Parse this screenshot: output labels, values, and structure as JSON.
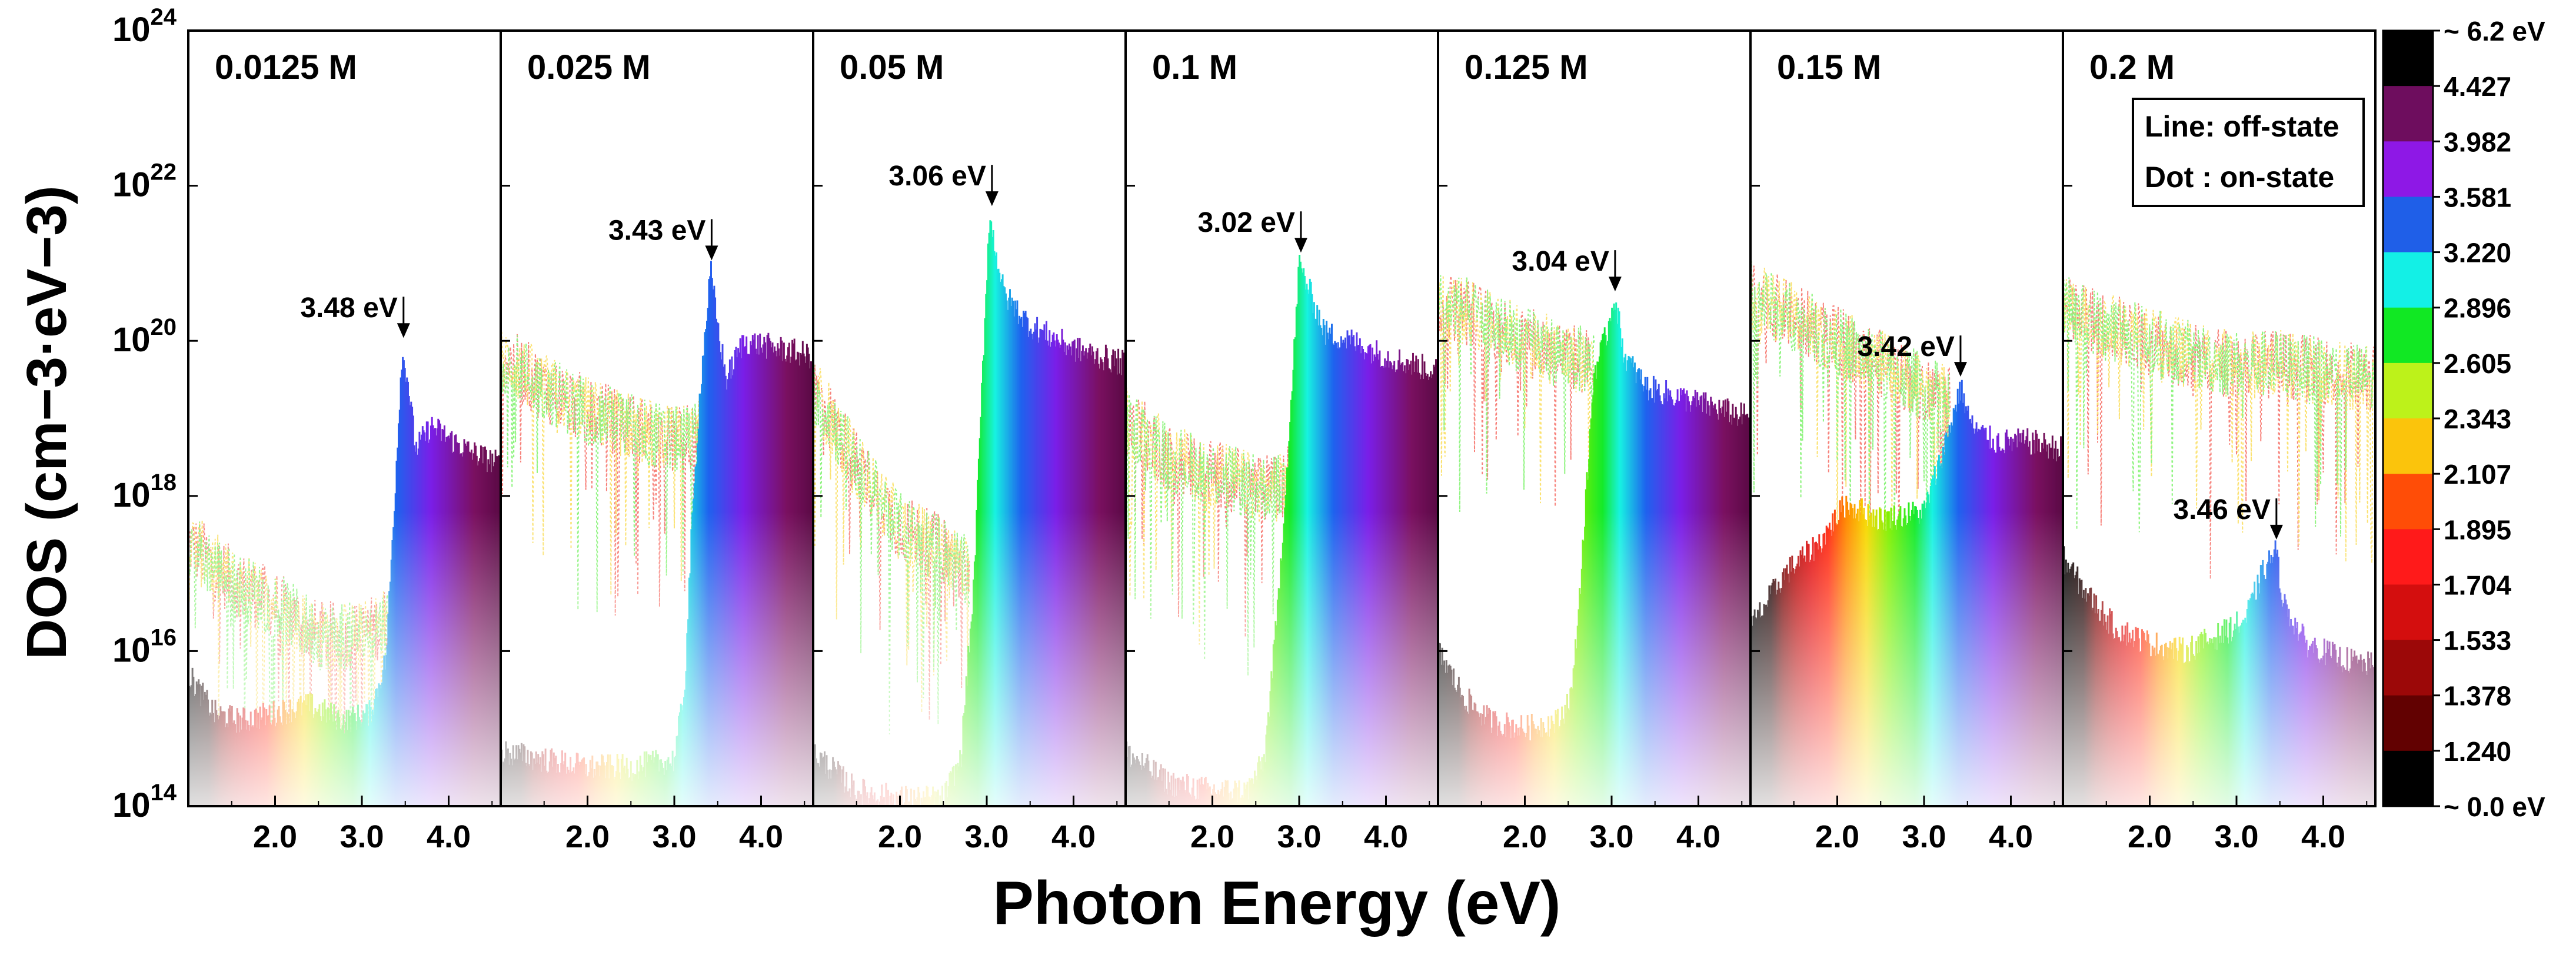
{
  "chart_data": {
    "type": "area",
    "ylabel": "DOS (cm−3·eV−3)",
    "xlabel": "Photon Energy (eV)",
    "yscale": "log",
    "ylim": [
      100000000000000.0,
      1e+24
    ],
    "xlim": [
      1.0,
      4.6
    ],
    "y_ticks": [
      {
        "base": "10",
        "exp": "14"
      },
      {
        "base": "10",
        "exp": "16"
      },
      {
        "base": "10",
        "exp": "18"
      },
      {
        "base": "10",
        "exp": "20"
      },
      {
        "base": "10",
        "exp": "22"
      },
      {
        "base": "10",
        "exp": "24"
      }
    ],
    "x_ticks": [
      "2.0",
      "3.0",
      "4.0"
    ],
    "legend_box": {
      "line": "Line: off-state",
      "dot": "Dot : on-state"
    },
    "colorbar": {
      "labels": [
        "~ 6.2 eV",
        "4.427",
        "3.982",
        "3.581",
        "3.220",
        "2.896",
        "2.605",
        "2.343",
        "2.107",
        "1.895",
        "1.704",
        "1.533",
        "1.378",
        "1.240",
        "~ 0.0 eV"
      ],
      "colors": [
        "#000000",
        "#6e0d5e",
        "#8e18e6",
        "#1f5fe8",
        "#13f0e6",
        "#11e823",
        "#bdf21a",
        "#fbc40c",
        "#ff4d07",
        "#ff1a1a",
        "#d40e0e",
        "#9c0808",
        "#620101",
        "#000000"
      ]
    },
    "panels": [
      {
        "label": "0.0125 M",
        "peak_label": "3.48 eV",
        "peak_x": 3.48,
        "peak_log": 20.0,
        "base_log": 14.6,
        "on_state": [
          [
            1.0,
            15.7
          ],
          [
            1.3,
            15.2
          ],
          [
            1.6,
            15.1
          ],
          [
            2.0,
            15.2
          ],
          [
            2.4,
            15.3
          ],
          [
            2.8,
            15.1
          ],
          [
            3.1,
            15.2
          ],
          [
            3.28,
            15.9
          ],
          [
            3.38,
            18.0
          ],
          [
            3.46,
            19.8
          ],
          [
            3.52,
            19.6
          ],
          [
            3.62,
            18.6
          ],
          [
            3.8,
            18.9
          ],
          [
            4.2,
            18.6
          ],
          [
            4.6,
            18.4
          ]
        ],
        "off_state": [
          [
            1.0,
            17.4
          ],
          [
            1.5,
            16.9
          ],
          [
            2.0,
            16.6
          ],
          [
            2.5,
            16.2
          ],
          [
            3.0,
            16.2
          ],
          [
            3.3,
            16.4
          ],
          [
            3.5,
            17.2
          ]
        ]
      },
      {
        "label": "0.025 M",
        "peak_label": "3.43 eV",
        "peak_x": 3.43,
        "peak_log": 21.0,
        "base_log": 14.3,
        "on_state": [
          [
            1.0,
            14.7
          ],
          [
            1.5,
            14.6
          ],
          [
            2.0,
            14.5
          ],
          [
            2.5,
            14.5
          ],
          [
            3.0,
            14.6
          ],
          [
            3.12,
            15.5
          ],
          [
            3.2,
            17.5
          ],
          [
            3.3,
            19.4
          ],
          [
            3.42,
            20.9
          ],
          [
            3.5,
            20.2
          ],
          [
            3.6,
            19.5
          ],
          [
            3.8,
            20.0
          ],
          [
            4.2,
            19.9
          ],
          [
            4.6,
            19.8
          ]
        ],
        "off_state": [
          [
            1.0,
            19.8
          ],
          [
            1.5,
            19.4
          ],
          [
            2.0,
            19.1
          ],
          [
            2.5,
            18.9
          ],
          [
            3.0,
            18.7
          ],
          [
            3.3,
            18.8
          ]
        ]
      },
      {
        "label": "0.05 M",
        "peak_label": "3.06 eV",
        "peak_x": 3.06,
        "peak_log": 21.7,
        "base_log": 14.2,
        "on_state": [
          [
            1.0,
            14.7
          ],
          [
            1.5,
            14.2
          ],
          [
            2.0,
            14.1
          ],
          [
            2.5,
            14.1
          ],
          [
            2.7,
            14.6
          ],
          [
            2.85,
            16.8
          ],
          [
            2.95,
            19.5
          ],
          [
            3.03,
            21.6
          ],
          [
            3.1,
            21.2
          ],
          [
            3.2,
            20.6
          ],
          [
            3.5,
            20.2
          ],
          [
            4.0,
            19.9
          ],
          [
            4.6,
            19.7
          ]
        ],
        "off_state": [
          [
            1.0,
            19.4
          ],
          [
            1.5,
            18.4
          ],
          [
            2.0,
            17.6
          ],
          [
            2.5,
            17.3
          ],
          [
            2.8,
            17.0
          ]
        ]
      },
      {
        "label": "0.1 M",
        "peak_label": "3.02 eV",
        "peak_x": 3.02,
        "peak_log": 21.1,
        "base_log": 14.2,
        "on_state": [
          [
            1.0,
            14.7
          ],
          [
            1.5,
            14.3
          ],
          [
            2.0,
            14.2
          ],
          [
            2.4,
            14.2
          ],
          [
            2.6,
            14.6
          ],
          [
            2.75,
            16.5
          ],
          [
            2.9,
            19.0
          ],
          [
            3.0,
            21.0
          ],
          [
            3.1,
            20.7
          ],
          [
            3.3,
            20.1
          ],
          [
            3.6,
            20.0
          ],
          [
            4.0,
            19.8
          ],
          [
            4.6,
            19.6
          ]
        ],
        "off_state": [
          [
            1.0,
            19.0
          ],
          [
            1.5,
            18.5
          ],
          [
            2.0,
            18.3
          ],
          [
            2.5,
            18.1
          ],
          [
            2.8,
            18.1
          ],
          [
            3.0,
            18.4
          ]
        ]
      },
      {
        "label": "0.125 M",
        "peak_label": "3.04 eV",
        "peak_x": 3.04,
        "peak_log": 20.6,
        "base_log": 14.2,
        "on_state": [
          [
            1.0,
            16.0
          ],
          [
            1.3,
            15.4
          ],
          [
            1.6,
            15.1
          ],
          [
            2.0,
            15.0
          ],
          [
            2.4,
            15.1
          ],
          [
            2.55,
            15.5
          ],
          [
            2.65,
            17.0
          ],
          [
            2.8,
            19.6
          ],
          [
            2.95,
            20.1
          ],
          [
            3.03,
            20.6
          ],
          [
            3.15,
            19.8
          ],
          [
            3.4,
            19.4
          ],
          [
            4.0,
            19.2
          ],
          [
            4.6,
            19.0
          ]
        ],
        "off_state": [
          [
            1.0,
            20.5
          ],
          [
            1.5,
            20.3
          ],
          [
            2.0,
            20.0
          ],
          [
            2.5,
            19.8
          ],
          [
            2.8,
            19.7
          ]
        ]
      },
      {
        "label": "0.15 M",
        "peak_label": "3.42 eV",
        "peak_x": 3.42,
        "peak_log": 19.5,
        "base_log": 14.2,
        "on_state": [
          [
            1.0,
            16.3
          ],
          [
            1.4,
            17.0
          ],
          [
            1.8,
            17.4
          ],
          [
            2.1,
            17.9
          ],
          [
            2.5,
            17.7
          ],
          [
            3.0,
            17.8
          ],
          [
            3.2,
            18.5
          ],
          [
            3.35,
            19.1
          ],
          [
            3.42,
            19.4
          ],
          [
            3.55,
            18.9
          ],
          [
            3.8,
            18.7
          ],
          [
            4.2,
            18.7
          ],
          [
            4.6,
            18.6
          ]
        ],
        "off_state": [
          [
            1.0,
            20.6
          ],
          [
            1.5,
            20.3
          ],
          [
            2.0,
            20.0
          ],
          [
            2.5,
            19.7
          ],
          [
            3.0,
            19.4
          ],
          [
            3.3,
            19.2
          ]
        ]
      },
      {
        "label": "0.2 M",
        "peak_label": "3.46 eV",
        "peak_x": 3.46,
        "peak_log": 17.4,
        "base_log": 14.3,
        "on_state": [
          [
            1.0,
            17.2
          ],
          [
            1.3,
            16.7
          ],
          [
            1.6,
            16.3
          ],
          [
            2.0,
            16.1
          ],
          [
            2.4,
            16.0
          ],
          [
            2.8,
            16.2
          ],
          [
            3.1,
            16.4
          ],
          [
            3.3,
            17.0
          ],
          [
            3.45,
            17.3
          ],
          [
            3.55,
            16.6
          ],
          [
            3.8,
            16.1
          ],
          [
            4.2,
            15.9
          ],
          [
            4.6,
            15.8
          ]
        ],
        "off_state": [
          [
            1.0,
            20.4
          ],
          [
            1.5,
            20.2
          ],
          [
            2.0,
            20.0
          ],
          [
            2.5,
            19.8
          ],
          [
            3.0,
            19.7
          ],
          [
            3.5,
            19.7
          ],
          [
            4.0,
            19.6
          ],
          [
            4.6,
            19.5
          ]
        ]
      }
    ]
  }
}
